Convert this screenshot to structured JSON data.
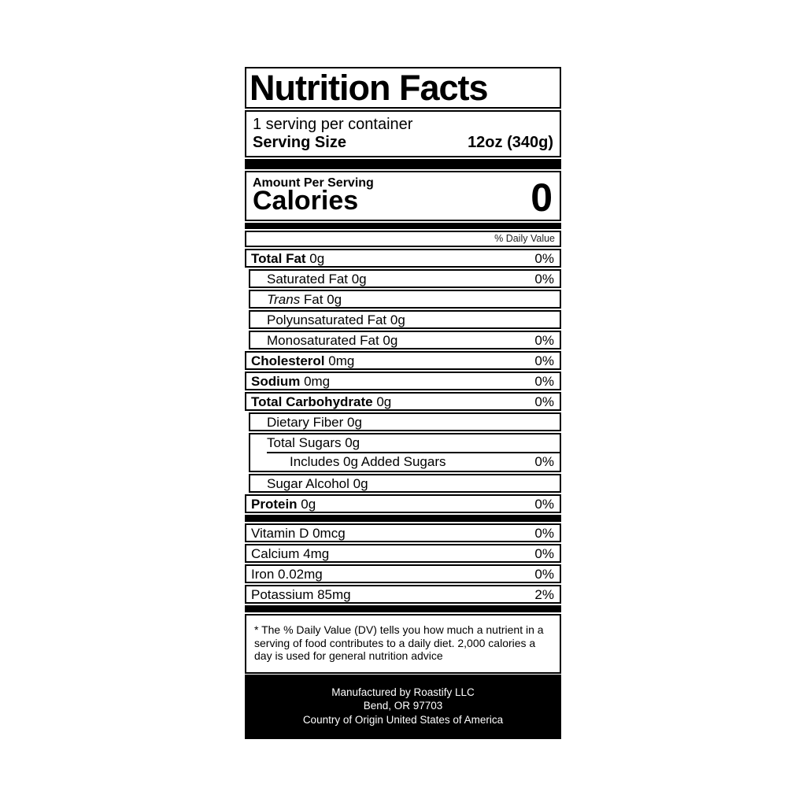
{
  "label": {
    "title": "Nutrition Facts",
    "servings_per_container": "1 serving per container",
    "serving_size_label": "Serving Size",
    "serving_size_value": "12oz (340g)",
    "amount_per_serving": "Amount Per Serving",
    "calories_label": "Calories",
    "calories_value": "0",
    "daily_value_header": "% Daily Value",
    "rows": [
      {
        "b": "Total Fat",
        "i": "",
        "r": " 0g",
        "dv": "0%"
      },
      {
        "b": "",
        "i": "",
        "r": "Saturated Fat 0g",
        "dv": "0%"
      },
      {
        "b": "",
        "i": "Trans",
        "r": " Fat 0g",
        "dv": ""
      },
      {
        "b": "",
        "i": "",
        "r": "Polyunsaturated Fat 0g",
        "dv": ""
      },
      {
        "b": "",
        "i": "",
        "r": "Monosaturated Fat 0g",
        "dv": "0%"
      },
      {
        "b": "Cholesterol",
        "i": "",
        "r": " 0mg",
        "dv": "0%"
      },
      {
        "b": "Sodium",
        "i": "",
        "r": " 0mg",
        "dv": "0%"
      },
      {
        "b": "Total Carbohydrate",
        "i": "",
        "r": " 0g",
        "dv": "0%"
      },
      {
        "b": "",
        "i": "",
        "r": "Dietary Fiber 0g",
        "dv": ""
      },
      {
        "b": "",
        "i": "",
        "r": "Sugar Alcohol 0g",
        "dv": ""
      },
      {
        "b": "Protein",
        "i": "",
        "r": " 0g",
        "dv": "0%"
      }
    ],
    "sugars": {
      "total": "Total Sugars 0g",
      "includes": "Includes 0g Added Sugars",
      "includes_dv": "0%"
    },
    "vitamins": [
      {
        "r": "Vitamin D 0mcg",
        "dv": "0%"
      },
      {
        "r": "Calcium 4mg",
        "dv": "0%"
      },
      {
        "r": "Iron 0.02mg",
        "dv": "0%"
      },
      {
        "r": "Potassium 85mg",
        "dv": "2%"
      }
    ],
    "footnote": "* The % Daily Value (DV) tells you how much a nutrient in a serving of food contributes to a daily diet. 2,000 calories a day is used for general nutrition advice",
    "footer_lines": [
      "Manufactured by Roastify LLC",
      "Bend, OR 97703",
      "Country of Origin United States of America"
    ],
    "colors": {
      "ink": "#000000",
      "paper": "#ffffff",
      "footer_bg": "#000000",
      "footer_text": "#ffffff"
    }
  }
}
